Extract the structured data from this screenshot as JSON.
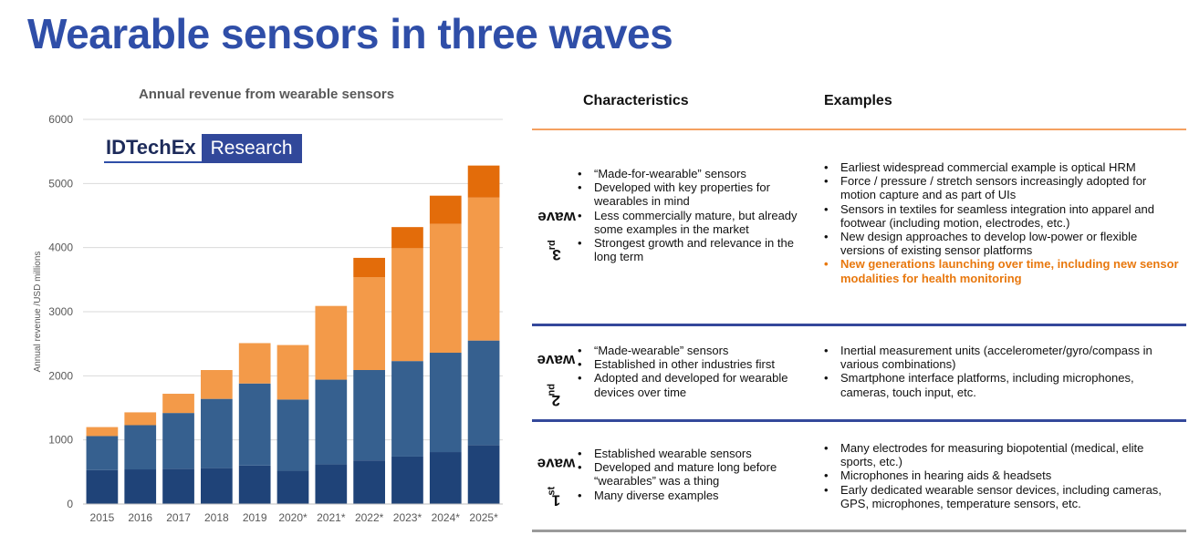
{
  "title": "Wearable sensors in three waves",
  "logo": {
    "left": "IDTechEx",
    "right": "Research"
  },
  "colors": {
    "title": "#2f4ea8",
    "dark": "#1f4378",
    "mid": "#36608f",
    "light": "#f39a49",
    "orange": "#e36c0a",
    "blueRule": "#34489b",
    "orangeRule": "#f4a060"
  },
  "chart_data": {
    "type": "bar",
    "stacked": true,
    "title": "Annual revenue from wearable sensors",
    "xlabel": "",
    "ylabel": "Annual revenue /USD millions",
    "ylim": [
      0,
      6000
    ],
    "yticks": [
      0,
      1000,
      2000,
      3000,
      4000,
      5000,
      6000
    ],
    "grid": true,
    "categories": [
      "2015",
      "2016",
      "2017",
      "2018",
      "2019",
      "2020*",
      "2021*",
      "2022*",
      "2023*",
      "2024*",
      "2025*"
    ],
    "series": [
      {
        "color": "#1f4378",
        "values": [
          530,
          540,
          550,
          560,
          600,
          520,
          620,
          680,
          740,
          810,
          920
        ]
      },
      {
        "color": "#36608f",
        "values": [
          530,
          690,
          870,
          1080,
          1280,
          1110,
          1320,
          1410,
          1490,
          1550,
          1630
        ]
      },
      {
        "color": "#f39a49",
        "values": [
          140,
          200,
          300,
          450,
          630,
          850,
          1150,
          1450,
          1760,
          2010,
          2230
        ]
      },
      {
        "color": "#e36c0a",
        "values": [
          0,
          0,
          0,
          0,
          0,
          0,
          0,
          300,
          330,
          440,
          500
        ]
      }
    ]
  },
  "table": {
    "headers": {
      "characteristics": "Characteristics",
      "examples": "Examples"
    },
    "waves": [
      {
        "label_num": "3",
        "label_sup": "rd",
        "label_word": "wave",
        "characteristics": [
          "“Made-for-wearable” sensors",
          "Developed with key properties for wearables in mind",
          "Less commercially mature, but already some examples in the market",
          "Strongest growth and relevance in the long term"
        ],
        "examples": [
          "Earliest widespread commercial example is optical HRM",
          "Force / pressure / stretch sensors increasingly adopted for motion capture and as part of UIs",
          "Sensors in textiles for seamless integration into apparel and footwear (including motion, electrodes, etc.)",
          "New design approaches to develop low-power or flexible versions of existing sensor platforms",
          "New generations launching over time, including new sensor modalities for health monitoring"
        ]
      },
      {
        "label_num": "2",
        "label_sup": "nd",
        "label_word": "wave",
        "characteristics": [
          "“Made-wearable” sensors",
          "Established in other industries first",
          "Adopted and developed for wearable devices over time"
        ],
        "examples": [
          "Inertial measurement units (accelerometer/gyro/compass in various combinations)",
          "Smartphone interface platforms, including microphones, cameras, touch input, etc."
        ]
      },
      {
        "label_num": "1",
        "label_sup": "st",
        "label_word": "wave",
        "characteristics": [
          "Established wearable sensors",
          "Developed and mature long before “wearables” was a thing",
          "Many diverse examples"
        ],
        "examples": [
          "Many electrodes for measuring biopotential (medical, elite sports, etc.)",
          "Microphones in hearing aids & headsets",
          "Early dedicated wearable sensor devices, including cameras, GPS, microphones, temperature sensors, etc."
        ]
      }
    ]
  }
}
